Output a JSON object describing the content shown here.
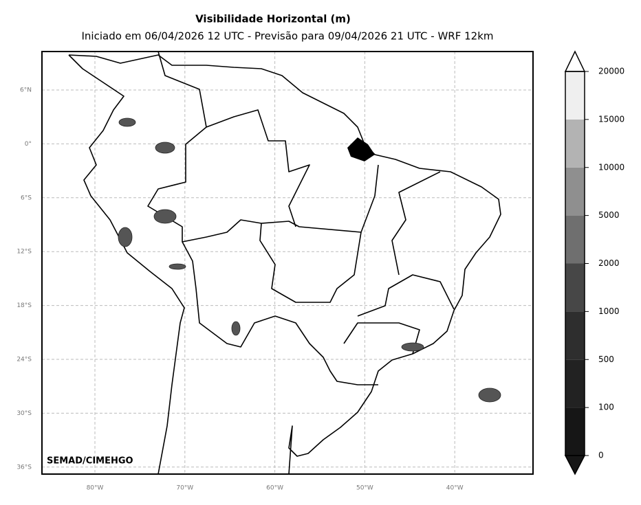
{
  "title": "Visibilidade Horizontal (m)",
  "subtitle": "Iniciado em 06/04/2026 12 UTC - Previsão para 09/04/2026 21 UTC - WRF 12km",
  "credit": "SEMAD/CIMEHGO",
  "lat_labels": [
    "6°N",
    "0°",
    "6°S",
    "12°S",
    "18°S",
    "24°S",
    "30°S",
    "36°S"
  ],
  "lon_labels": [
    "80°W",
    "70°W",
    "60°W",
    "50°W",
    "40°W"
  ],
  "colorbar": {
    "ticks": [
      0,
      100,
      500,
      1000,
      2000,
      5000,
      10000,
      15000,
      20000
    ],
    "colors": [
      "#161616",
      "#222222",
      "#2e2e2e",
      "#474747",
      "#6f6f6f",
      "#8f8f8f",
      "#b3b3b3",
      "#efefef"
    ]
  }
}
